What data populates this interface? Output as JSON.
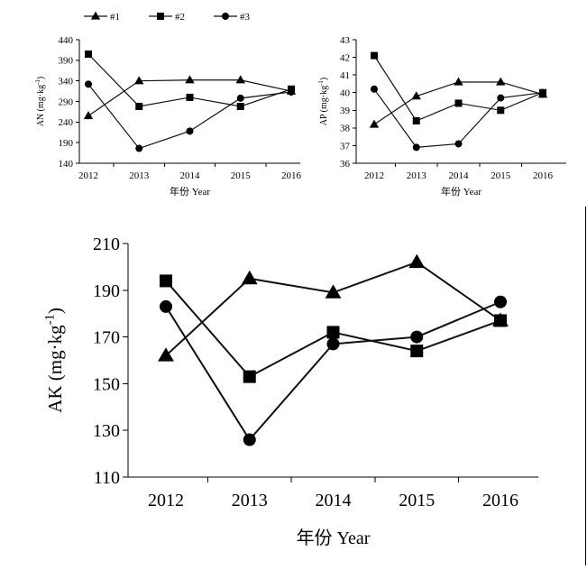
{
  "legend": [
    {
      "label": "#1",
      "marker": "triangle"
    },
    {
      "label": "#2",
      "marker": "square"
    },
    {
      "label": "#3",
      "marker": "circle"
    }
  ],
  "chart_data": [
    {
      "type": "line",
      "panel": "AN",
      "ylabel": "AN (mg·kg",
      "ylabel_sup": "-1",
      "ylabel_close": ")",
      "xlabel": "年份 Year",
      "x": [
        "2012",
        "2013",
        "2014",
        "2015",
        "2016"
      ],
      "ylim": [
        140,
        440
      ],
      "yticks": [
        140,
        190,
        240,
        290,
        340,
        390,
        440
      ],
      "series": [
        {
          "name": "#1",
          "marker": "triangle",
          "values": [
            255,
            340,
            342,
            342,
            315
          ]
        },
        {
          "name": "#2",
          "marker": "square",
          "values": [
            405,
            278,
            300,
            278,
            320
          ]
        },
        {
          "name": "#3",
          "marker": "circle",
          "values": [
            332,
            176,
            218,
            298,
            313
          ]
        }
      ]
    },
    {
      "type": "line",
      "panel": "AP",
      "ylabel": "AP (mg·kg",
      "ylabel_sup": "-1",
      "ylabel_close": ")",
      "xlabel": "年份 Year",
      "x": [
        "2012",
        "2013",
        "2014",
        "2015",
        "2016"
      ],
      "ylim": [
        36,
        43
      ],
      "yticks": [
        36,
        37,
        38,
        39,
        40,
        41,
        42,
        43
      ],
      "series": [
        {
          "name": "#1",
          "marker": "triangle",
          "values": [
            38.2,
            39.8,
            40.6,
            40.6,
            39.9
          ]
        },
        {
          "name": "#2",
          "marker": "square",
          "values": [
            42.1,
            38.4,
            39.4,
            39.0,
            40.0
          ]
        },
        {
          "name": "#3",
          "marker": "circle",
          "values": [
            40.2,
            36.9,
            37.1,
            39.7,
            40.0
          ]
        }
      ]
    },
    {
      "type": "line",
      "panel": "AK",
      "ylabel": "AK (mg·kg",
      "ylabel_sup": "-1",
      "ylabel_close": ")",
      "xlabel": "年份 Year",
      "x": [
        "2012",
        "2013",
        "2014",
        "2015",
        "2016"
      ],
      "ylim": [
        110,
        210
      ],
      "yticks": [
        110,
        130,
        150,
        170,
        190,
        210
      ],
      "series": [
        {
          "name": "#1",
          "marker": "triangle",
          "values": [
            162,
            195,
            189,
            202,
            177
          ]
        },
        {
          "name": "#2",
          "marker": "square",
          "values": [
            194,
            153,
            172,
            164,
            177
          ]
        },
        {
          "name": "#3",
          "marker": "circle",
          "values": [
            183,
            126,
            167,
            170,
            185
          ]
        }
      ]
    }
  ]
}
